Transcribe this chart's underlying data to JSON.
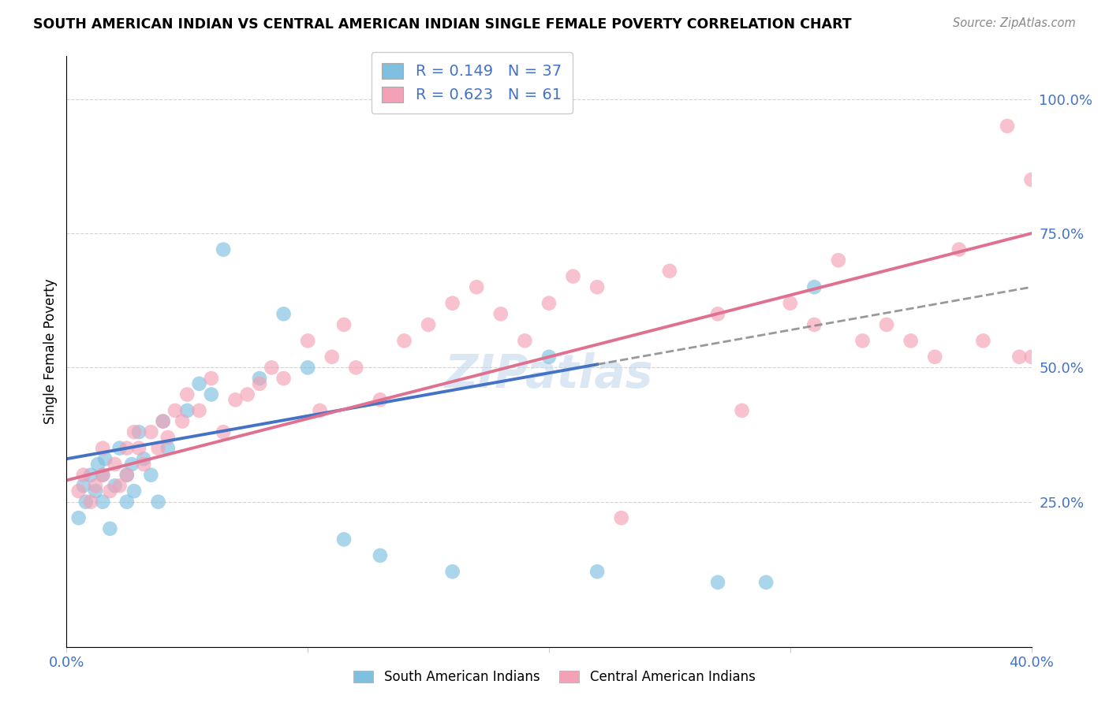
{
  "title": "SOUTH AMERICAN INDIAN VS CENTRAL AMERICAN INDIAN SINGLE FEMALE POVERTY CORRELATION CHART",
  "source": "Source: ZipAtlas.com",
  "ylabel": "Single Female Poverty",
  "xlim": [
    0.0,
    0.4
  ],
  "ylim": [
    -0.02,
    1.08
  ],
  "xtick_positions": [
    0.0,
    0.1,
    0.2,
    0.3,
    0.4
  ],
  "xtick_labels": [
    "0.0%",
    "",
    "",
    "",
    "40.0%"
  ],
  "ytick_positions": [
    0.25,
    0.5,
    0.75,
    1.0
  ],
  "ytick_labels": [
    "25.0%",
    "50.0%",
    "75.0%",
    "100.0%"
  ],
  "south_american_color": "#7fbfdf",
  "central_american_color": "#f4a0b5",
  "sa_line_color": "#4472c4",
  "ca_line_color": "#e07090",
  "sa_R": 0.149,
  "sa_N": 37,
  "ca_R": 0.623,
  "ca_N": 61,
  "watermark": "ZIPatlas",
  "sa_line_intercept": 0.33,
  "sa_line_slope": 0.8,
  "ca_line_intercept": 0.29,
  "ca_line_slope": 1.15,
  "sa_x": [
    0.005,
    0.007,
    0.008,
    0.01,
    0.012,
    0.013,
    0.015,
    0.015,
    0.016,
    0.018,
    0.02,
    0.022,
    0.025,
    0.025,
    0.027,
    0.028,
    0.03,
    0.032,
    0.035,
    0.038,
    0.04,
    0.042,
    0.05,
    0.055,
    0.06,
    0.065,
    0.08,
    0.09,
    0.1,
    0.115,
    0.13,
    0.16,
    0.2,
    0.22,
    0.27,
    0.29,
    0.31
  ],
  "sa_y": [
    0.22,
    0.28,
    0.25,
    0.3,
    0.27,
    0.32,
    0.25,
    0.3,
    0.33,
    0.2,
    0.28,
    0.35,
    0.25,
    0.3,
    0.32,
    0.27,
    0.38,
    0.33,
    0.3,
    0.25,
    0.4,
    0.35,
    0.42,
    0.47,
    0.45,
    0.72,
    0.48,
    0.6,
    0.5,
    0.18,
    0.15,
    0.12,
    0.52,
    0.12,
    0.1,
    0.1,
    0.65
  ],
  "ca_x": [
    0.005,
    0.007,
    0.01,
    0.012,
    0.015,
    0.015,
    0.018,
    0.02,
    0.022,
    0.025,
    0.025,
    0.028,
    0.03,
    0.032,
    0.035,
    0.038,
    0.04,
    0.042,
    0.045,
    0.048,
    0.05,
    0.055,
    0.06,
    0.065,
    0.07,
    0.075,
    0.08,
    0.085,
    0.09,
    0.1,
    0.105,
    0.11,
    0.115,
    0.12,
    0.13,
    0.14,
    0.15,
    0.16,
    0.17,
    0.18,
    0.19,
    0.2,
    0.21,
    0.22,
    0.23,
    0.25,
    0.27,
    0.28,
    0.3,
    0.31,
    0.32,
    0.33,
    0.34,
    0.35,
    0.36,
    0.37,
    0.38,
    0.39,
    0.395,
    0.4,
    0.4
  ],
  "ca_y": [
    0.27,
    0.3,
    0.25,
    0.28,
    0.3,
    0.35,
    0.27,
    0.32,
    0.28,
    0.35,
    0.3,
    0.38,
    0.35,
    0.32,
    0.38,
    0.35,
    0.4,
    0.37,
    0.42,
    0.4,
    0.45,
    0.42,
    0.48,
    0.38,
    0.44,
    0.45,
    0.47,
    0.5,
    0.48,
    0.55,
    0.42,
    0.52,
    0.58,
    0.5,
    0.44,
    0.55,
    0.58,
    0.62,
    0.65,
    0.6,
    0.55,
    0.62,
    0.67,
    0.65,
    0.22,
    0.68,
    0.6,
    0.42,
    0.62,
    0.58,
    0.7,
    0.55,
    0.58,
    0.55,
    0.52,
    0.72,
    0.55,
    0.95,
    0.52,
    0.52,
    0.85
  ]
}
